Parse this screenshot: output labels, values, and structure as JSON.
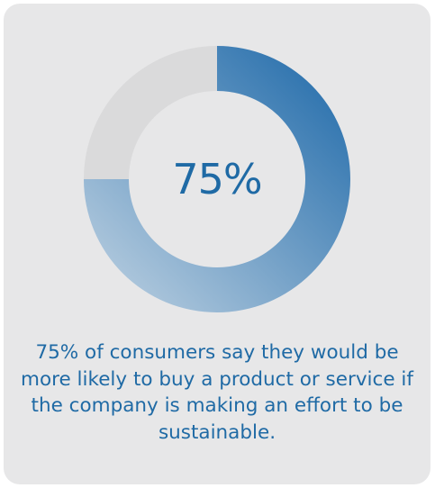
{
  "chart_data": {
    "type": "pie",
    "variant": "donut",
    "slices": [
      {
        "label": "",
        "value": 75,
        "color_start": "#1b67a8",
        "color_end": "#c2d4e3"
      },
      {
        "label": "",
        "value": 25,
        "color": "#dadadb"
      }
    ],
    "center_text": "75%",
    "caption": "75% of consumers say they would be more likely to buy a product or service if the company is making an effort to be sustainable."
  },
  "colors": {
    "background": "#e7e7e8",
    "accent": "#1f6aa5",
    "track": "#dadadb"
  }
}
